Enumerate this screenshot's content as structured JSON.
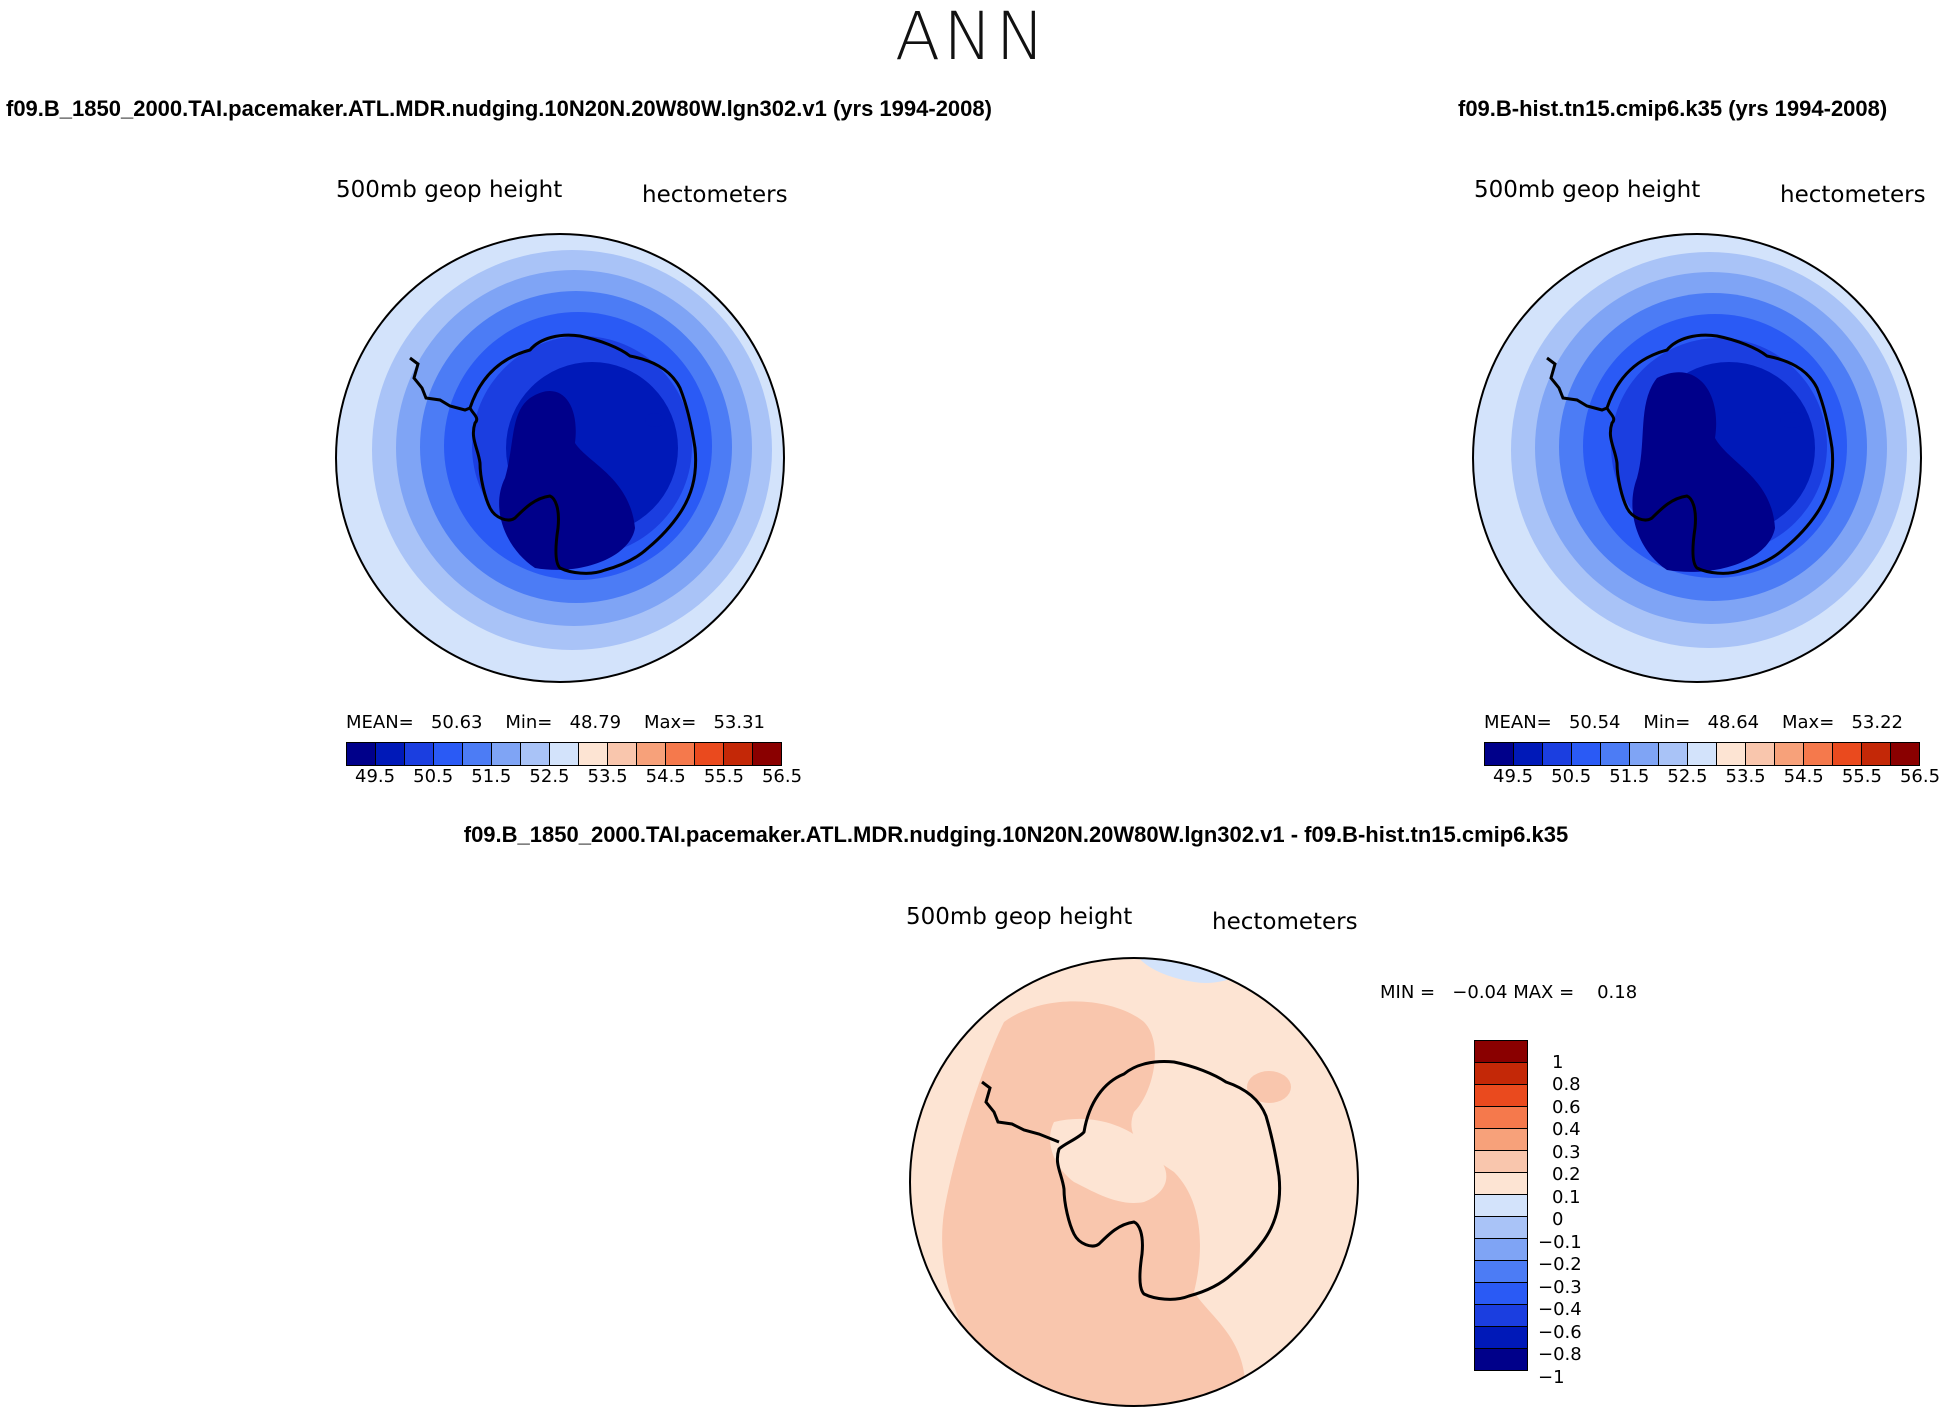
{
  "season": "ANN",
  "panel_a": {
    "case": "f09.B_1850_2000.TAI.pacemaker.ATL.MDR.nudging.10N20N.20W80W.lgn302.v1 (yrs 1994-2008)",
    "variable": "500mb geop height",
    "units": "hectometers",
    "mean_label": "MEAN=",
    "mean": "50.63",
    "min_label": "Min=",
    "min": "48.79",
    "max_label": "Max=",
    "max": "53.31"
  },
  "panel_b": {
    "case": "f09.B-hist.tn15.cmip6.k35 (yrs 1994-2008)",
    "variable": "500mb geop height",
    "units": "hectometers",
    "mean_label": "MEAN=",
    "mean": "50.54",
    "min_label": "Min=",
    "min": "48.64",
    "max_label": "Max=",
    "max": "53.22"
  },
  "panel_diff": {
    "case": "f09.B_1850_2000.TAI.pacemaker.ATL.MDR.nudging.10N20N.20W80W.lgn302.v1 - f09.B-hist.tn15.cmip6.k35",
    "variable": "500mb geop height",
    "units": "hectometers",
    "min_label": "MIN =",
    "min": "−0.04",
    "max_label": "MAX =",
    "max": "0.18"
  },
  "colorbar_main": {
    "colors": [
      "#00008a",
      "#0019b8",
      "#1b3ee0",
      "#2a5af5",
      "#4c7cf5",
      "#7fa4f5",
      "#a9c3f7",
      "#d3e3fb",
      "#fde4d3",
      "#f9c6ad",
      "#f7a17a",
      "#f5794c",
      "#ea4a1e",
      "#c42807",
      "#8a0000"
    ],
    "ticks": [
      "49.5",
      "50.5",
      "51.5",
      "52.5",
      "53.5",
      "54.5",
      "55.5",
      "56.5"
    ]
  },
  "colorbar_diff": {
    "colors": [
      "#8a0000",
      "#c42807",
      "#ea4a1e",
      "#f5794c",
      "#f7a17a",
      "#f9c6ad",
      "#fde4d3",
      "#d3e3fb",
      "#a9c3f7",
      "#7fa4f5",
      "#4c7cf5",
      "#2a5af5",
      "#1b3ee0",
      "#0019b8",
      "#00008a"
    ],
    "ticks": [
      "1",
      "0.8",
      "0.6",
      "0.4",
      "0.3",
      "0.2",
      "0.1",
      "0",
      "−0.1",
      "−0.2",
      "−0.3",
      "−0.4",
      "−0.6",
      "−0.8",
      "−1"
    ]
  }
}
